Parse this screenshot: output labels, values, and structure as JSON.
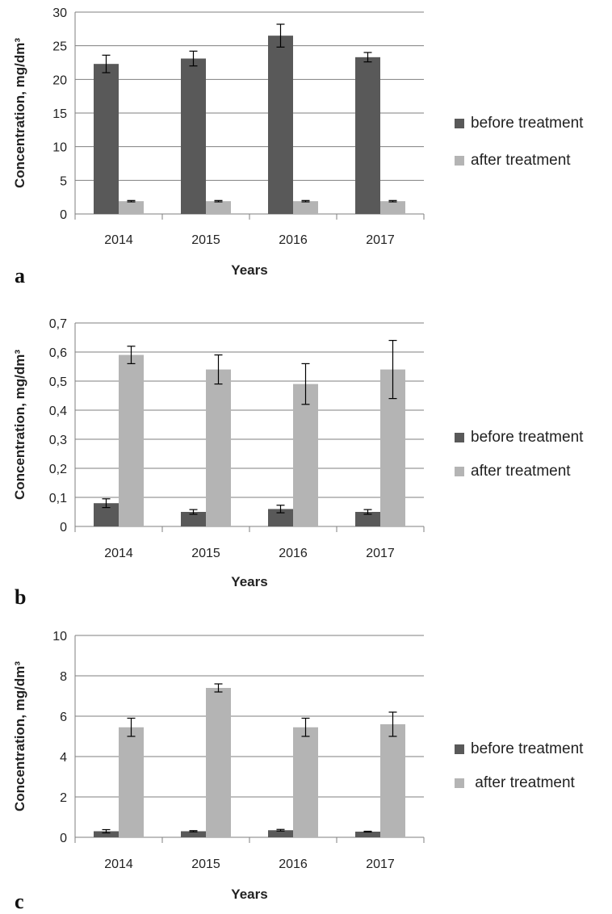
{
  "chart_data": [
    {
      "type": "bar",
      "panel_label": "a",
      "categories": [
        "2014",
        "2015",
        "2016",
        "2017"
      ],
      "series": [
        {
          "name": "before treatment",
          "values": [
            22.3,
            23.1,
            26.5,
            23.3
          ],
          "errors": [
            1.3,
            1.1,
            1.7,
            0.7
          ]
        },
        {
          "name": "after treatment",
          "values": [
            1.9,
            1.9,
            1.9,
            1.9
          ],
          "errors": [
            0.1,
            0.1,
            0.1,
            0.1
          ]
        }
      ],
      "xlabel": "Years",
      "ylabel": "Concentration, mg/dm³",
      "ylim": [
        0,
        30
      ],
      "yticks": [
        0,
        5,
        10,
        15,
        20,
        25,
        30
      ],
      "ytick_labels": [
        "0",
        "5",
        "10",
        "15",
        "20",
        "25",
        "30"
      ],
      "legend_labels": [
        "before treatment",
        "after treatment"
      ],
      "grid": true,
      "legend_position": "right"
    },
    {
      "type": "bar",
      "panel_label": "b",
      "categories": [
        "2014",
        "2015",
        "2016",
        "2017"
      ],
      "series": [
        {
          "name": "before treatment",
          "values": [
            0.08,
            0.05,
            0.06,
            0.05
          ],
          "errors": [
            0.015,
            0.008,
            0.013,
            0.008
          ]
        },
        {
          "name": "after treatment",
          "values": [
            0.59,
            0.54,
            0.49,
            0.54
          ],
          "errors": [
            0.03,
            0.05,
            0.07,
            0.1
          ]
        }
      ],
      "xlabel": "Years",
      "ylabel": "Concentration, mg/dm³",
      "ylim": [
        0,
        0.7
      ],
      "yticks": [
        0,
        0.1,
        0.2,
        0.3,
        0.4,
        0.5,
        0.6,
        0.7
      ],
      "ytick_labels": [
        "0",
        "0,1",
        "0,2",
        "0,3",
        "0,4",
        "0,5",
        "0,6",
        "0,7"
      ],
      "legend_labels": [
        "before treatment",
        "after treatment"
      ],
      "grid": true,
      "legend_position": "right"
    },
    {
      "type": "bar",
      "panel_label": "c",
      "categories": [
        "2014",
        "2015",
        "2016",
        "2017"
      ],
      "series": [
        {
          "name": "before treatment",
          "values": [
            0.3,
            0.3,
            0.35,
            0.28
          ],
          "errors": [
            0.08,
            0.03,
            0.04,
            0.02
          ]
        },
        {
          "name": "after treatment",
          "values": [
            5.45,
            7.4,
            5.45,
            5.6
          ],
          "errors": [
            0.45,
            0.2,
            0.45,
            0.6
          ]
        }
      ],
      "xlabel": "Years",
      "ylabel": "Concentration, mg/dm³",
      "ylim": [
        0,
        10
      ],
      "yticks": [
        0,
        2,
        4,
        6,
        8,
        10
      ],
      "ytick_labels": [
        "0",
        "2",
        "4",
        "6",
        "8",
        "10"
      ],
      "legend_labels": [
        "before treatment",
        " after treatment"
      ],
      "grid": true,
      "legend_position": "right"
    }
  ],
  "colors": {
    "before": "#595959",
    "after": "#b4b4b4",
    "grid": "#7f7f7f",
    "axis": "#7f7f7f"
  }
}
